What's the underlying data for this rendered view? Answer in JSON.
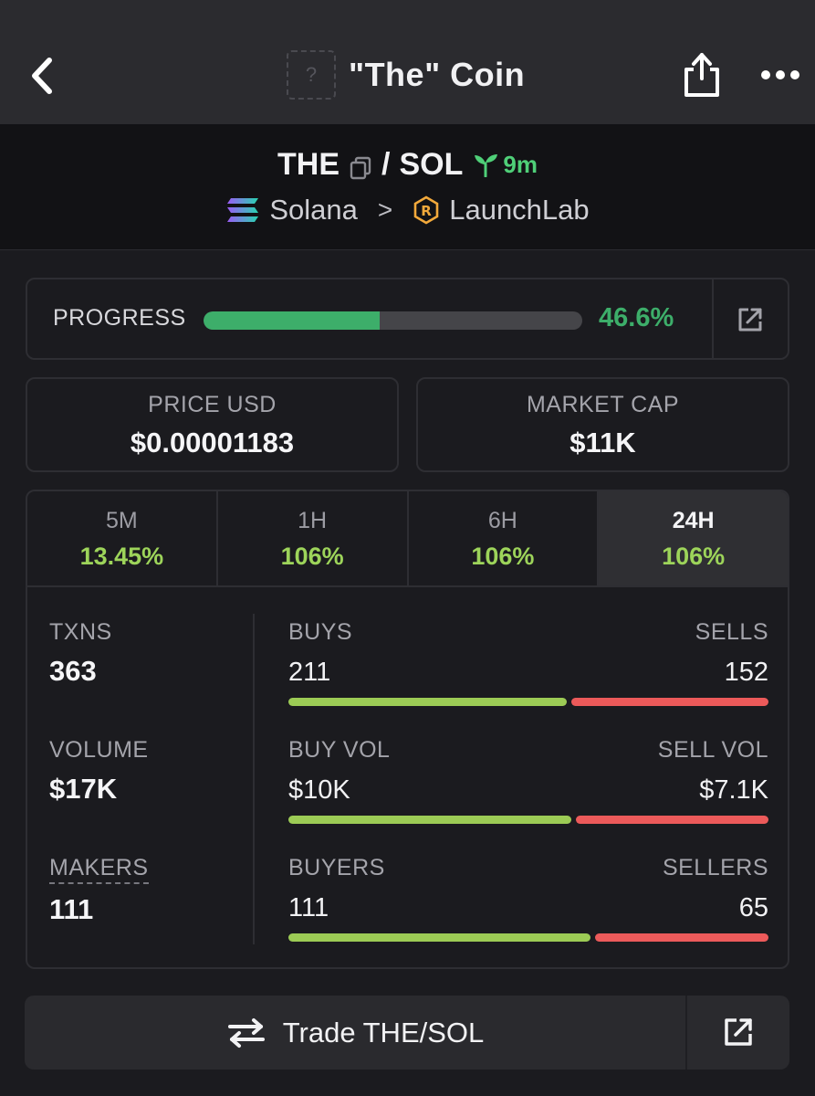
{
  "header": {
    "title": "\"The\" Coin",
    "logo_placeholder": "?",
    "icons": {
      "back": "chevron-left-icon",
      "share": "share-icon",
      "more": "more-dots-icon"
    }
  },
  "pair": {
    "base": "THE",
    "separator": "/",
    "quote": "SOL",
    "age": "9m",
    "chain": "Solana",
    "dex": "LaunchLab",
    "crumb_sep": ">"
  },
  "progress": {
    "label": "PROGRESS",
    "value_text": "46.6%",
    "fraction": 0.466,
    "color": "#3dae6a"
  },
  "price": {
    "label": "PRICE USD",
    "value": "$0.00001183"
  },
  "market_cap": {
    "label": "MARKET CAP",
    "value": "$11K"
  },
  "tabs": [
    {
      "label": "5M",
      "value": "13.45%"
    },
    {
      "label": "1H",
      "value": "106%"
    },
    {
      "label": "6H",
      "value": "106%"
    },
    {
      "label": "24H",
      "value": "106%",
      "active": true
    }
  ],
  "metrics": {
    "txns": {
      "label": "TXNS",
      "value": "363"
    },
    "volume": {
      "label": "VOLUME",
      "value": "$17K"
    },
    "makers": {
      "label": "MAKERS",
      "value": "111"
    }
  },
  "splits": {
    "txns": {
      "left_label": "BUYS",
      "right_label": "SELLS",
      "left_value": "211",
      "right_value": "152",
      "buy_fraction": 0.58
    },
    "volume": {
      "left_label": "BUY VOL",
      "right_label": "SELL VOL",
      "left_value": "$10K",
      "right_value": "$7.1K",
      "buy_fraction": 0.59
    },
    "makers": {
      "left_label": "BUYERS",
      "right_label": "SELLERS",
      "left_value": "111",
      "right_value": "65",
      "buy_fraction": 0.63
    }
  },
  "trade": {
    "label": "Trade THE/SOL"
  },
  "colors": {
    "buy": "#9ccb55",
    "sell": "#ec5a5a",
    "positive": "#9dd45a",
    "accent_green": "#4fcf78"
  }
}
